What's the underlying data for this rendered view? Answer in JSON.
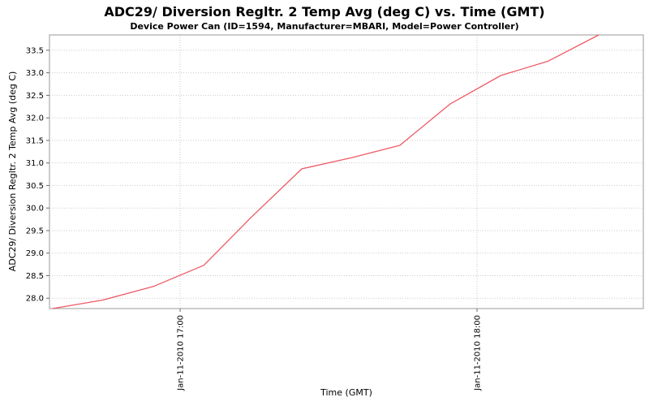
{
  "chart_data": {
    "type": "line",
    "title": "ADC29/ Diversion Regltr. 2 Temp Avg (deg C) vs. Time (GMT)",
    "subtitle": "Device Power Can (ID=1594, Manufacturer=MBARI, Model=Power Controller)",
    "xlabel": "Time (GMT)",
    "ylabel": "ADC29/ Diversion Regltr. 2 Temp Avg (deg C)",
    "x_unit": "decimal hours GMT, Jan-11-2010",
    "x": [
      16.57,
      16.74,
      16.91,
      17.08,
      17.24,
      17.41,
      17.58,
      17.74,
      17.91,
      18.08,
      18.24,
      18.41
    ],
    "x_times": [
      "16:34",
      "16:44",
      "16:54",
      "17:05",
      "17:15",
      "17:25",
      "17:35",
      "17:45",
      "17:55",
      "18:05",
      "18:15",
      "18:25"
    ],
    "series": [
      {
        "name": "ADC29/ Diversion Regltr. 2 Temp Avg (deg C)",
        "values": [
          27.77,
          27.96,
          28.26,
          28.73,
          29.8,
          30.87,
          31.12,
          31.39,
          32.31,
          32.94,
          33.26,
          33.84
        ]
      }
    ],
    "x_ticks": [
      {
        "value": 17.0,
        "label": "Jan-11-2010 17:00"
      },
      {
        "value": 18.0,
        "label": "Jan-11-2010 18:00"
      }
    ],
    "y_ticks": [
      28.0,
      28.5,
      29.0,
      29.5,
      30.0,
      30.5,
      31.0,
      31.5,
      32.0,
      32.5,
      33.0,
      33.5
    ],
    "xlim": [
      16.56,
      18.56
    ],
    "ylim": [
      27.77,
      33.84
    ],
    "grid": true,
    "legend": "none",
    "colors": {
      "line": "#ee5a64",
      "grid": "#c9c9c9",
      "plot_border": "#9a9a9a",
      "tick_mark": "#666666",
      "tick_text": "#000000",
      "background": "#ffffff"
    }
  }
}
